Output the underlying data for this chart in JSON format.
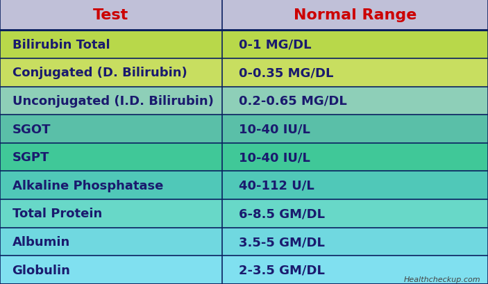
{
  "header": [
    "Test",
    "Normal Range"
  ],
  "rows": [
    [
      "Bilirubin Total",
      "0-1 MG/DL"
    ],
    [
      "Conjugated (D. Bilirubin)",
      "0-0.35 MG/DL"
    ],
    [
      "Unconjugated (I.D. Bilirubin)",
      "0.2-0.65 MG/DL"
    ],
    [
      "SGOT",
      "10-40 IU/L"
    ],
    [
      "SGPT",
      "10-40 IU/L"
    ],
    [
      "Alkaline Phosphatase",
      "40-112 U/L"
    ],
    [
      "Total Protein",
      "6-8.5 GM/DL"
    ],
    [
      "Albumin",
      "3.5-5 GM/DL"
    ],
    [
      "Globulin",
      "2-3.5 GM/DL"
    ]
  ],
  "row_colors": [
    "#b8d84a",
    "#c8de60",
    "#8ecfb8",
    "#5abfa8",
    "#40c898",
    "#50c8b8",
    "#68d8c8",
    "#70d8e0",
    "#80e0f0"
  ],
  "header_bg": "#c0c0d8",
  "header_text_color": "#cc0000",
  "cell_text_color": "#1a1a6e",
  "border_color": "#0a2060",
  "col_split": 0.455,
  "watermark": "Healthcheckup.com",
  "watermark_color": "#444444",
  "header_fontsize": 16,
  "cell_fontsize": 13,
  "watermark_fontsize": 8
}
